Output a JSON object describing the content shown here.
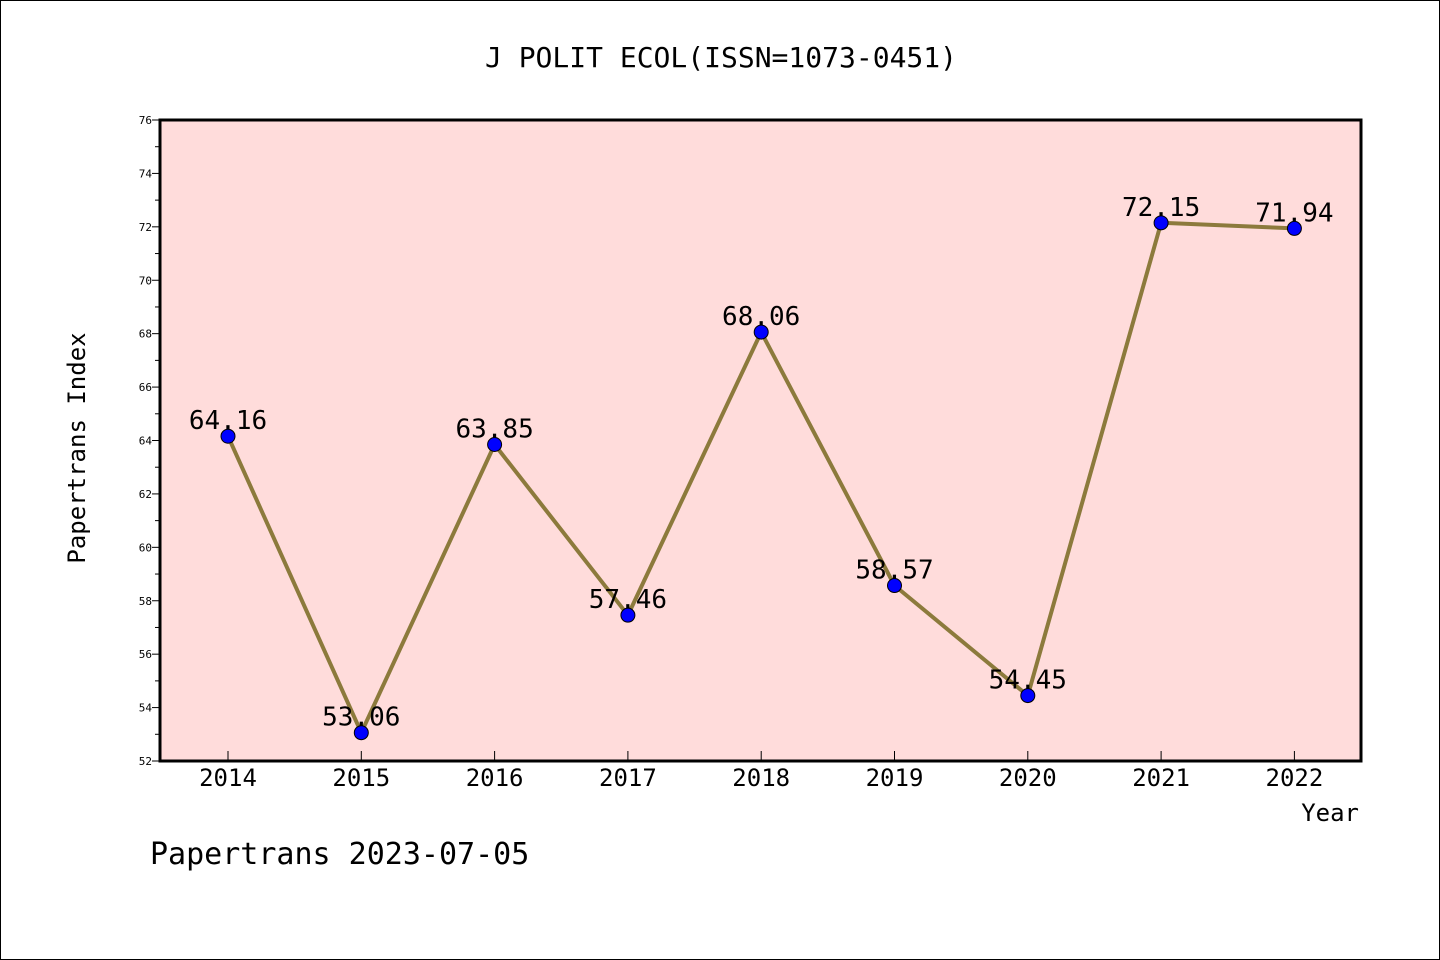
{
  "chart_data": {
    "type": "line",
    "title": "J POLIT ECOL(ISSN=1073-0451)",
    "xlabel": "Year",
    "ylabel": "Papertrans Index",
    "footer": "Papertrans 2023-07-05",
    "categories": [
      "2014",
      "2015",
      "2016",
      "2017",
      "2018",
      "2019",
      "2020",
      "2021",
      "2022"
    ],
    "values": [
      64.16,
      53.06,
      63.85,
      57.46,
      68.06,
      58.57,
      54.45,
      72.15,
      71.94
    ],
    "data_labels": [
      "64.16",
      "53.06",
      "63.85",
      "57.46",
      "68.06",
      "58.57",
      "54.45",
      "72.15",
      "71.94"
    ],
    "ylim": [
      52,
      76
    ],
    "yticks": [
      "52",
      "54",
      "56",
      "58",
      "60",
      "62",
      "64",
      "66",
      "68",
      "70",
      "72",
      "74",
      "76"
    ],
    "grid": false,
    "colors": {
      "plot_background": "#ffdcdb",
      "line": "#8c7a3c",
      "marker": "#0000ff"
    }
  }
}
